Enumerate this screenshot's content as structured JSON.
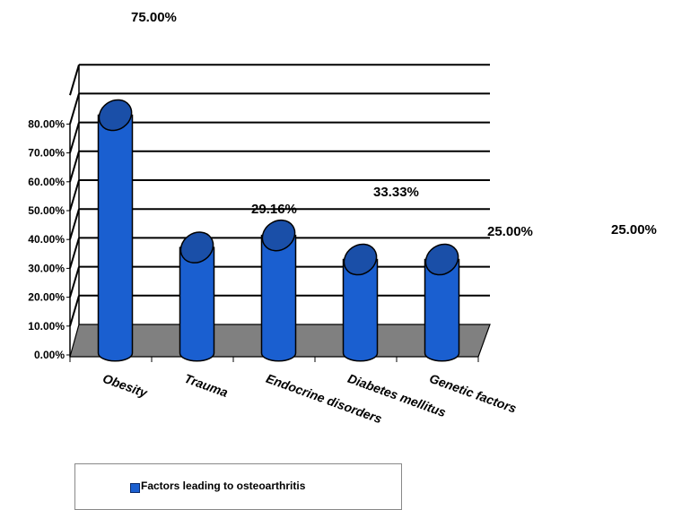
{
  "chart_data": {
    "type": "bar",
    "style": "3d-cylinder",
    "categories": [
      "Obesity",
      "Trauma",
      "Endocrine disorders",
      "Diabetes mellitus",
      "Genetic factors"
    ],
    "series": [
      {
        "name": "Factors leading to osteoarthritis",
        "values": [
          75.0,
          29.16,
          33.33,
          25.0,
          25.0
        ],
        "color": "#1a5fd0"
      }
    ],
    "data_labels": [
      "75.00%",
      "29.16%",
      "33.33%",
      "25.00%",
      "25.00%"
    ],
    "y_ticks": [
      "0.00%",
      "10.00%",
      "20.00%",
      "30.00%",
      "40.00%",
      "50.00%",
      "60.00%",
      "70.00%",
      "80.00%"
    ],
    "ylim": [
      0,
      80
    ],
    "grid": true,
    "legend_position": "bottom",
    "floor_color": "#808080"
  }
}
